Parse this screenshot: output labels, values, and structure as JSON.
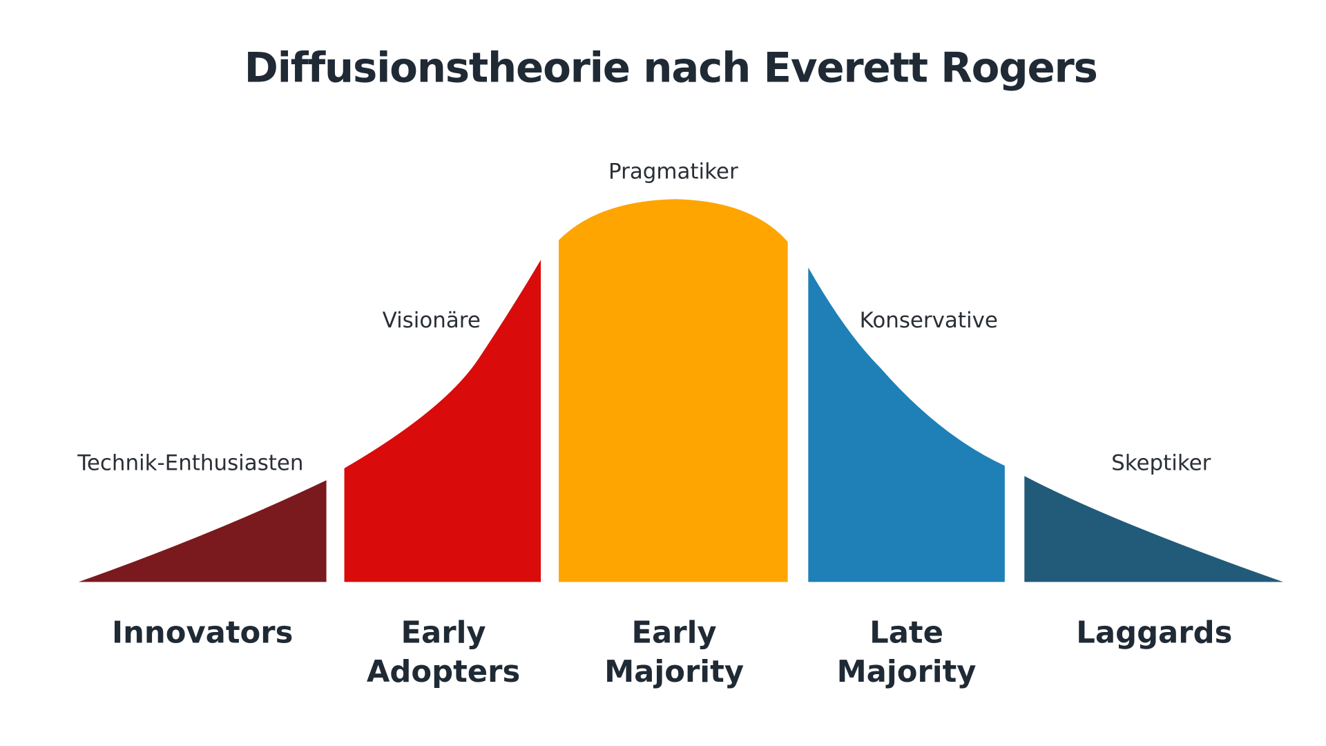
{
  "title": "Diffusionstheorie nach Everett Rogers",
  "segments": [
    {
      "label": "Technik-Enthusiasten",
      "name": [
        "Innovators"
      ]
    },
    {
      "label": "Visionäre",
      "name": [
        "Early",
        "Adopters"
      ]
    },
    {
      "label": "Pragmatiker",
      "name": [
        "Early",
        "Majority"
      ]
    },
    {
      "label": "Konservative",
      "name": [
        "Late",
        "Majority"
      ]
    },
    {
      "label": "Skeptiker",
      "name": [
        "Laggards"
      ]
    }
  ]
}
